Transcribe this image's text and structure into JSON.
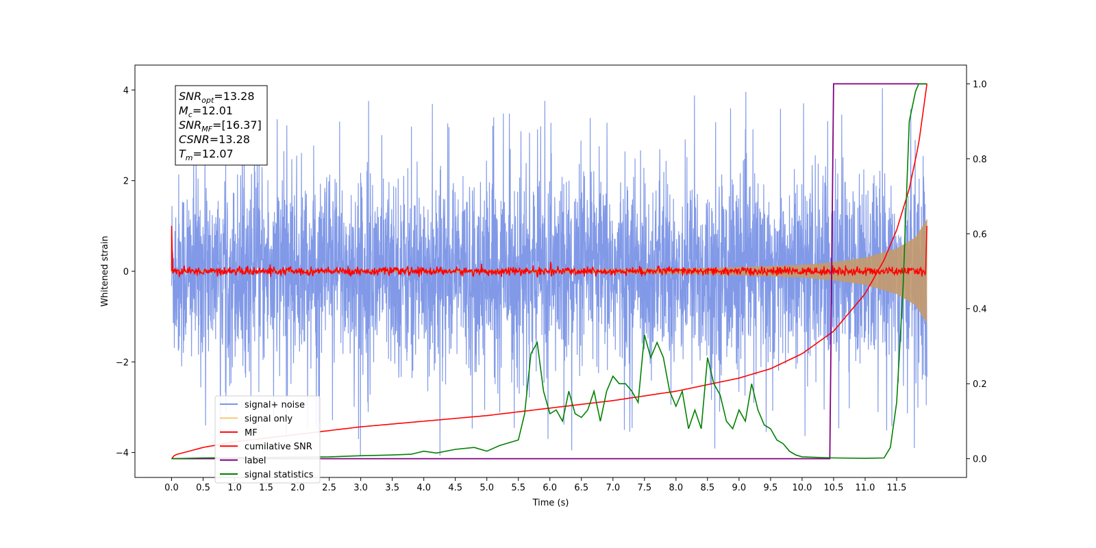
{
  "chart_data": {
    "type": "line",
    "xlabel": "Time (s)",
    "ylabel": "Whitened strain",
    "xlim": [
      -0.6,
      12.4
    ],
    "ylim": [
      -4.55,
      4.55
    ],
    "y2lim": [
      -0.05,
      1.05
    ],
    "grid": false,
    "legend_position": "lower-left",
    "x_ticks": [
      0.0,
      0.5,
      1.0,
      1.5,
      2.0,
      2.5,
      3.0,
      3.5,
      4.0,
      4.5,
      5.0,
      5.5,
      6.0,
      6.5,
      7.0,
      7.5,
      8.0,
      8.5,
      9.0,
      9.5,
      10.0,
      10.5,
      11.0,
      11.5
    ],
    "x_tick_labels": [
      "0.0",
      "0.5",
      "1.0",
      "1.5",
      "2.0",
      "2.5",
      "3.0",
      "3.5",
      "4.0",
      "4.5",
      "5.0",
      "5.5",
      "6.0",
      "6.5",
      "7.0",
      "7.5",
      "8.0",
      "8.5",
      "9.0",
      "9.5",
      "10.0",
      "10.5",
      "11.0",
      "11.5"
    ],
    "y_ticks": [
      4,
      2,
      0,
      -2,
      -4
    ],
    "y_tick_labels": [
      "4",
      "2",
      "0",
      "−2",
      "−4"
    ],
    "y2_ticks": [
      1.0,
      0.8,
      0.6,
      0.4,
      0.2,
      0.0
    ],
    "y2_tick_labels": [
      "1.0",
      "0.8",
      "0.6",
      "0.4",
      "0.2",
      "0.0"
    ],
    "annotation": {
      "lines": [
        {
          "main": "SNR",
          "sub": "opt",
          "value": "=13.28"
        },
        {
          "main": "M",
          "sub": "c",
          "value": "=12.01"
        },
        {
          "main": "SNR",
          "sub": "MF",
          "value": "=[16.37]"
        },
        {
          "main": "CSNR",
          "sub": "",
          "value": "=13.28"
        },
        {
          "main": "T",
          "sub": "m",
          "value": "=12.07"
        }
      ]
    },
    "series": [
      {
        "name": "signal+ noise",
        "color": "#7a93e6",
        "axis": "left",
        "description_points": {
          "x_range": [
            0.0,
            11.98
          ],
          "envelope_typical": [
            -2.5,
            2.5
          ],
          "max_peak": 4.1,
          "min_peak": -4.1
        }
      },
      {
        "name": "signal only",
        "color": "#f7c873",
        "axis": "left",
        "envelope": {
          "x": [
            0.0,
            6.0,
            8.0,
            9.0,
            10.0,
            10.5,
            11.0,
            11.5,
            11.8,
            11.98
          ],
          "amplitude": [
            0.02,
            0.03,
            0.06,
            0.09,
            0.14,
            0.2,
            0.3,
            0.5,
            0.75,
            1.15
          ]
        }
      },
      {
        "name": "MF",
        "color": "#ff0000",
        "axis": "left",
        "description_points": {
          "x_range": [
            0.0,
            11.98
          ],
          "baseline": 0.0,
          "noise_amplitude": 0.1,
          "start_spike": 1.0,
          "end_spike": 1.0
        }
      },
      {
        "name": "cumilative SNR",
        "color": "#e31a1c",
        "axis": "right",
        "x": [
          0.0,
          0.05,
          0.5,
          1.0,
          2.0,
          3.0,
          4.0,
          5.0,
          6.0,
          7.0,
          8.0,
          9.0,
          9.5,
          10.0,
          10.5,
          11.0,
          11.3,
          11.5,
          11.7,
          11.85,
          11.98
        ],
        "values": [
          0.0,
          0.01,
          0.03,
          0.045,
          0.065,
          0.085,
          0.1,
          0.115,
          0.135,
          0.155,
          0.18,
          0.215,
          0.24,
          0.28,
          0.34,
          0.44,
          0.53,
          0.61,
          0.72,
          0.84,
          1.0
        ]
      },
      {
        "name": "label",
        "color": "#800080",
        "axis": "right",
        "x": [
          0.0,
          10.44,
          10.5,
          11.98
        ],
        "values": [
          0.0,
          0.0,
          1.0,
          1.0
        ]
      },
      {
        "name": "signal statistics",
        "color": "#008000",
        "axis": "right",
        "x": [
          0.0,
          0.5,
          1.0,
          2.0,
          2.5,
          3.0,
          3.5,
          3.8,
          4.0,
          4.2,
          4.5,
          4.8,
          5.0,
          5.2,
          5.5,
          5.6,
          5.7,
          5.8,
          5.9,
          6.0,
          6.1,
          6.2,
          6.3,
          6.4,
          6.5,
          6.6,
          6.7,
          6.8,
          6.9,
          7.0,
          7.1,
          7.2,
          7.3,
          7.4,
          7.5,
          7.55,
          7.6,
          7.7,
          7.8,
          7.9,
          8.0,
          8.1,
          8.2,
          8.3,
          8.4,
          8.5,
          8.6,
          8.7,
          8.8,
          8.9,
          9.0,
          9.1,
          9.2,
          9.3,
          9.4,
          9.5,
          9.6,
          9.7,
          9.8,
          9.9,
          10.0,
          10.5,
          11.0,
          11.3,
          11.4,
          11.5,
          11.6,
          11.7,
          11.8,
          11.85,
          11.9,
          11.98
        ],
        "values": [
          0.0,
          0.002,
          0.003,
          0.004,
          0.005,
          0.008,
          0.01,
          0.012,
          0.02,
          0.015,
          0.025,
          0.03,
          0.02,
          0.035,
          0.05,
          0.12,
          0.28,
          0.31,
          0.18,
          0.12,
          0.13,
          0.1,
          0.18,
          0.12,
          0.11,
          0.13,
          0.18,
          0.1,
          0.18,
          0.22,
          0.2,
          0.2,
          0.18,
          0.15,
          0.33,
          0.3,
          0.27,
          0.31,
          0.27,
          0.18,
          0.14,
          0.18,
          0.08,
          0.13,
          0.08,
          0.27,
          0.2,
          0.17,
          0.1,
          0.08,
          0.13,
          0.1,
          0.2,
          0.13,
          0.09,
          0.08,
          0.05,
          0.04,
          0.02,
          0.01,
          0.005,
          0.002,
          0.001,
          0.002,
          0.03,
          0.15,
          0.45,
          0.9,
          0.98,
          1.0,
          1.0,
          1.0
        ]
      }
    ]
  }
}
